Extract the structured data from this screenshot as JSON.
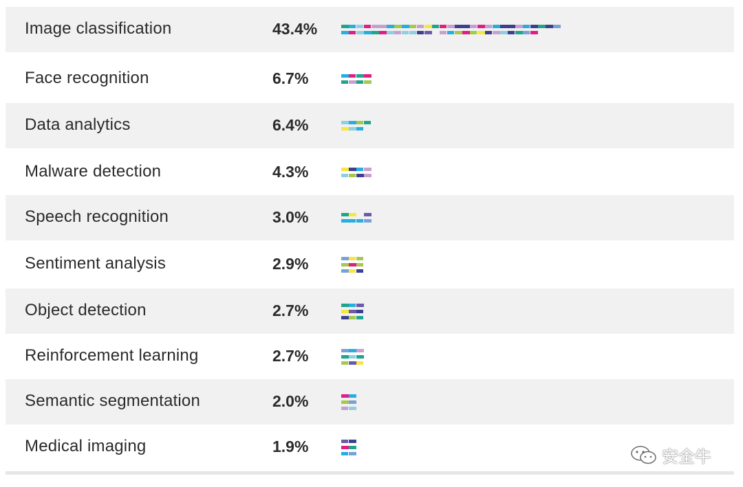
{
  "chart_data": {
    "type": "bar",
    "orientation": "horizontal",
    "categories": [
      "Image classification",
      "Face recognition",
      "Data analytics",
      "Malware detection",
      "Speech recognition",
      "Sentiment analysis",
      "Object detection",
      "Reinforcement learning",
      "Semantic segmentation",
      "Medical imaging"
    ],
    "values": [
      43.4,
      6.7,
      6.4,
      4.3,
      3.0,
      2.9,
      2.7,
      2.7,
      2.0,
      1.9
    ],
    "value_labels": [
      "43.4%",
      "6.7%",
      "6.4%",
      "4.3%",
      "3.0%",
      "2.9%",
      "2.7%",
      "2.7%",
      "2.0%",
      "1.9%"
    ],
    "unit": "%",
    "title": "",
    "xlabel": "",
    "ylabel": "",
    "grid": false,
    "legend": "none",
    "colors": [
      "#a5c84f",
      "#8fcfe0",
      "#c8a0d0",
      "#e01e84",
      "#1fa58c",
      "#27aee0",
      "#3d3f8f",
      "#f5e642",
      "#6a5aa8",
      "#7aa0d8"
    ]
  },
  "watermark": {
    "text": "安全牛",
    "icon": "wechat-icon"
  }
}
